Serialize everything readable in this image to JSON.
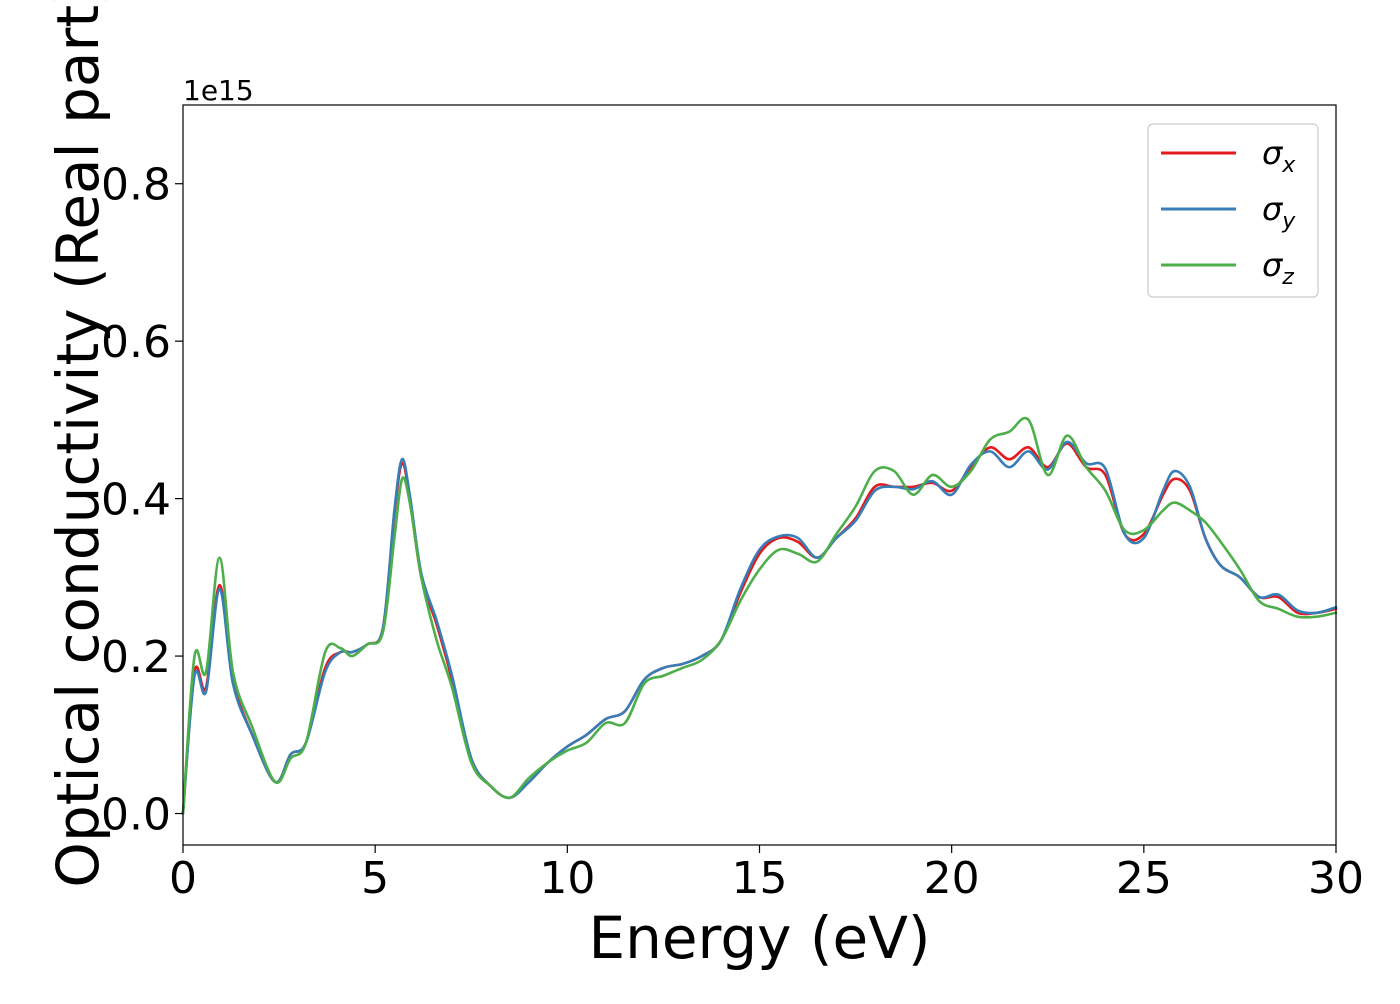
{
  "chart_data": {
    "type": "line",
    "title": "",
    "xlabel": "Energy (eV)",
    "ylabel": "Optical conductivity (Real part)",
    "y_offset_text": "1e15",
    "xlim": [
      0,
      30
    ],
    "ylim": [
      -0.04,
      0.9
    ],
    "xticks": [
      0,
      5,
      10,
      15,
      20,
      25,
      30
    ],
    "yticks": [
      0.0,
      0.2,
      0.4,
      0.6,
      0.8
    ],
    "xtick_labels": [
      "0",
      "5",
      "10",
      "15",
      "20",
      "25",
      "30"
    ],
    "ytick_labels": [
      "0.0",
      "0.2",
      "0.4",
      "0.6",
      "0.8"
    ],
    "grid": false,
    "legend_position": "top-right",
    "x": [
      0,
      0.3,
      0.6,
      0.95,
      1.3,
      1.8,
      2.4,
      2.8,
      3.2,
      3.7,
      4.1,
      4.4,
      4.8,
      5.2,
      5.5,
      5.7,
      5.9,
      6.2,
      6.6,
      7.0,
      7.5,
      8.0,
      8.5,
      9.0,
      9.5,
      10.0,
      10.5,
      11.0,
      11.5,
      12.0,
      12.5,
      13.0,
      13.5,
      14.0,
      14.5,
      15.0,
      15.5,
      16.0,
      16.5,
      17.0,
      17.5,
      18.0,
      18.5,
      19.0,
      19.5,
      20.0,
      20.5,
      21.0,
      21.5,
      22.0,
      22.5,
      23.0,
      23.5,
      24.0,
      24.5,
      25.0,
      25.5,
      25.8,
      26.2,
      26.6,
      27.0,
      27.5,
      28.0,
      28.5,
      29.0,
      29.5,
      30.0
    ],
    "series": [
      {
        "name": "σx",
        "label_base": "σ",
        "label_sub": "x",
        "color": "#e41a1c",
        "values": [
          0.0,
          0.18,
          0.16,
          0.29,
          0.17,
          0.1,
          0.04,
          0.075,
          0.09,
          0.185,
          0.205,
          0.205,
          0.215,
          0.235,
          0.38,
          0.445,
          0.4,
          0.3,
          0.24,
          0.17,
          0.07,
          0.035,
          0.02,
          0.04,
          0.065,
          0.085,
          0.1,
          0.12,
          0.13,
          0.17,
          0.185,
          0.19,
          0.2,
          0.22,
          0.28,
          0.33,
          0.35,
          0.345,
          0.325,
          0.35,
          0.375,
          0.415,
          0.415,
          0.415,
          0.42,
          0.41,
          0.44,
          0.465,
          0.45,
          0.465,
          0.44,
          0.47,
          0.44,
          0.43,
          0.355,
          0.355,
          0.405,
          0.425,
          0.41,
          0.35,
          0.315,
          0.3,
          0.275,
          0.275,
          0.255,
          0.255,
          0.26
        ]
      },
      {
        "name": "σy",
        "label_base": "σ",
        "label_sub": "y",
        "color": "#377eb8",
        "values": [
          0.0,
          0.175,
          0.155,
          0.285,
          0.165,
          0.1,
          0.04,
          0.075,
          0.09,
          0.18,
          0.205,
          0.205,
          0.215,
          0.235,
          0.385,
          0.45,
          0.405,
          0.305,
          0.245,
          0.175,
          0.07,
          0.035,
          0.02,
          0.04,
          0.065,
          0.085,
          0.1,
          0.12,
          0.13,
          0.17,
          0.185,
          0.19,
          0.2,
          0.22,
          0.285,
          0.335,
          0.352,
          0.35,
          0.325,
          0.35,
          0.372,
          0.41,
          0.415,
          0.412,
          0.422,
          0.405,
          0.443,
          0.46,
          0.44,
          0.46,
          0.437,
          0.472,
          0.445,
          0.438,
          0.355,
          0.35,
          0.41,
          0.435,
          0.415,
          0.35,
          0.315,
          0.3,
          0.275,
          0.278,
          0.258,
          0.255,
          0.262
        ]
      },
      {
        "name": "σz",
        "label_base": "σ",
        "label_sub": "z",
        "color": "#4daf4a",
        "values": [
          0.0,
          0.2,
          0.18,
          0.325,
          0.18,
          0.11,
          0.04,
          0.07,
          0.09,
          0.205,
          0.21,
          0.2,
          0.215,
          0.23,
          0.35,
          0.425,
          0.395,
          0.3,
          0.22,
          0.16,
          0.065,
          0.035,
          0.02,
          0.045,
          0.065,
          0.08,
          0.09,
          0.115,
          0.115,
          0.165,
          0.175,
          0.185,
          0.195,
          0.22,
          0.27,
          0.31,
          0.335,
          0.33,
          0.32,
          0.355,
          0.39,
          0.435,
          0.435,
          0.405,
          0.43,
          0.415,
          0.435,
          0.475,
          0.485,
          0.5,
          0.43,
          0.48,
          0.44,
          0.41,
          0.36,
          0.36,
          0.385,
          0.395,
          0.385,
          0.37,
          0.345,
          0.31,
          0.27,
          0.26,
          0.25,
          0.25,
          0.255
        ]
      }
    ]
  }
}
